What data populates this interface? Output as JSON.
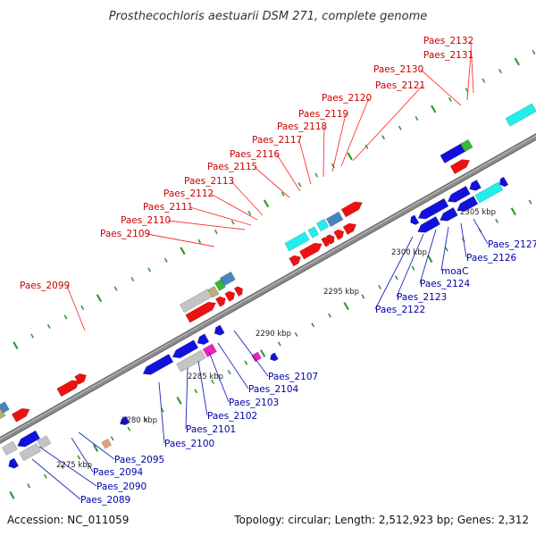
{
  "title": "Prosthecochloris aestuarii DSM 271, complete genome",
  "footer": {
    "accession": "Accession: NC_011059",
    "summary": "Topology: circular; Length: 2,512,923 bp; Genes: 2,312"
  },
  "colors": {
    "upper_label": "#cc0000",
    "lower_label": "#0000aa",
    "backbone": "#8c8c8c",
    "tick": "#339933",
    "gene_red": "#ee1111",
    "gene_blue": "#1111dd",
    "gene_cyan": "#22eeee",
    "gene_grey": "#c4c4c4",
    "gene_green": "#33bb33",
    "gene_magenta": "#ee22bb",
    "gene_olive": "#b5b07a",
    "gene_steel": "#4a84c0"
  },
  "scale_labels": [
    "2275 kbp",
    "2280 kbp",
    "2285 kbp",
    "2290 kbp",
    "2295 kbp",
    "2300 kbp",
    "2305 kbp"
  ],
  "upper_genes": [
    "Paes_2132",
    "Paes_2131",
    "Paes_2130",
    "Paes_2121",
    "Paes_2120",
    "Paes_2119",
    "Paes_2118",
    "Paes_2117",
    "Paes_2116",
    "Paes_2115",
    "Paes_2113",
    "Paes_2112",
    "Paes_2111",
    "Paes_2110",
    "Paes_2109",
    "Paes_2099"
  ],
  "lower_genes": [
    "Paes_2127",
    "Paes_2126",
    "moaC",
    "Paes_2124",
    "Paes_2123",
    "Paes_2122",
    "Paes_2107",
    "Paes_2104",
    "Paes_2103",
    "Paes_2102",
    "Paes_2101",
    "Paes_2100",
    "Paes_2095",
    "Paes_2094",
    "Paes_2090",
    "Paes_2089"
  ]
}
